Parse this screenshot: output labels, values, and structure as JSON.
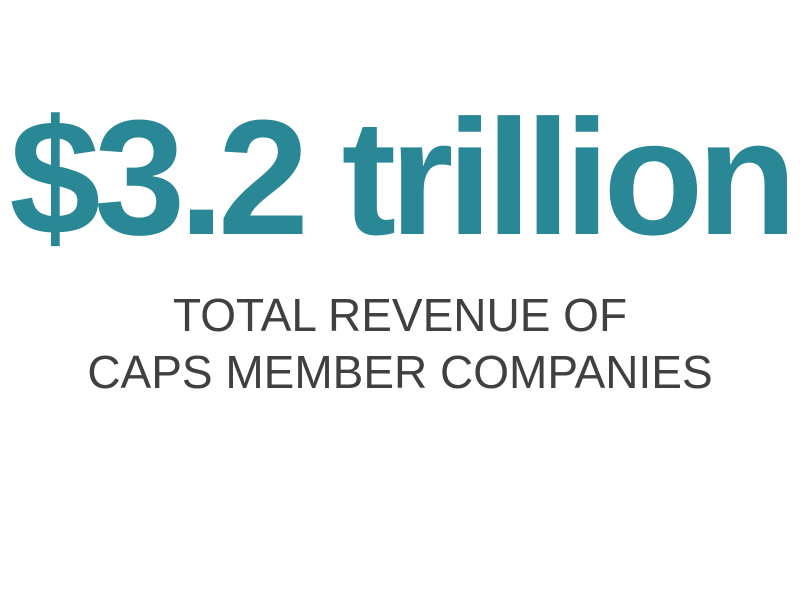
{
  "headline": {
    "value": "$3.2 trillion",
    "color": "#2a8896"
  },
  "subtitle": {
    "line1": "TOTAL REVENUE OF",
    "line2": "CAPS MEMBER COMPANIES",
    "color": "#404040"
  }
}
